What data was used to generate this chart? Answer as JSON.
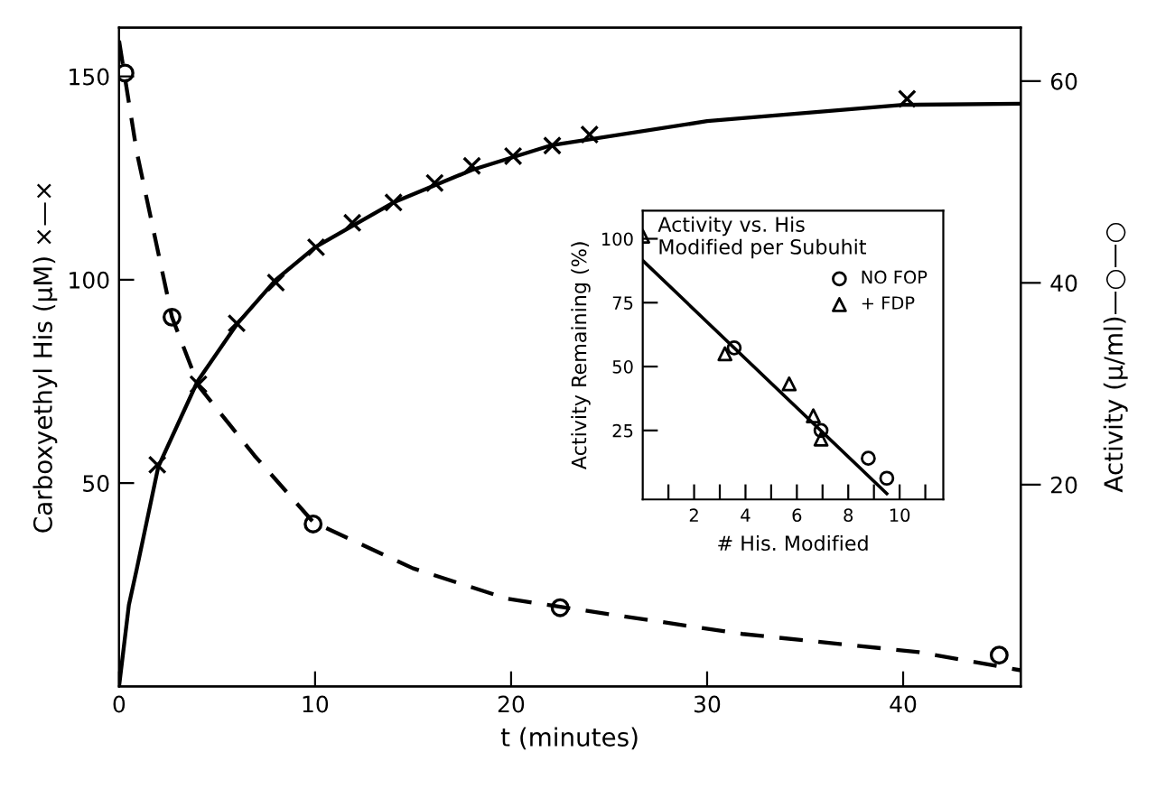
{
  "chart_data": [
    {
      "type": "scatter",
      "xlabel": "t (minutes)",
      "ylabel": "Carboxyethyl His (μM) ×—×",
      "y2label": "Activity (μ/ml)—○—○",
      "xlim": [
        0,
        46
      ],
      "xticks": [
        0,
        10,
        20,
        30,
        40
      ],
      "ylim": [
        0,
        162
      ],
      "yticks": [
        50,
        100,
        150
      ],
      "y2lim": [
        0,
        65.3
      ],
      "y2ticks": [
        20,
        40,
        60
      ],
      "grid": false,
      "legend": false,
      "series": [
        {
          "color": "#000000",
          "marker": "cross",
          "x": [
            1.95,
            4.05,
            6.0,
            8.0,
            10.05,
            11.9,
            14.0,
            16.1,
            18.0,
            20.1,
            22.1,
            24.0,
            40.2
          ],
          "values": [
            54.5,
            74.3,
            89.3,
            99.3,
            108,
            114,
            119,
            123.8,
            128,
            130.4,
            133,
            135.7,
            144.5
          ]
        },
        {
          "type": "line",
          "color": "#000000",
          "marker": "none",
          "line_style": "solid",
          "x": [
            0,
            0.5,
            0.9,
            2,
            4,
            6,
            8,
            10,
            14,
            18,
            22,
            30,
            40,
            46
          ],
          "values": [
            0,
            20,
            28.8,
            54,
            75,
            89,
            100,
            108,
            119,
            127,
            133,
            139,
            143,
            143.3
          ]
        },
        {
          "axis": "y2",
          "color": "#000000",
          "marker": "circle",
          "x": [
            0.3,
            2.7,
            9.9,
            22.5,
            44.9
          ],
          "values": [
            60.8,
            36.6,
            16.1,
            7.8,
            3.1
          ]
        },
        {
          "type": "line",
          "axis": "y2",
          "color": "#000000",
          "marker": "none",
          "line_style": "dashed",
          "x": [
            0,
            0.9,
            2.7,
            4.05,
            6.9,
            9.9,
            15,
            19.8,
            22.8,
            31.8,
            40.8,
            46
          ],
          "values": [
            64,
            53,
            36.6,
            29.8,
            22.9,
            16.3,
            11.7,
            8.7,
            7.8,
            5.2,
            3.4,
            1.6
          ]
        }
      ]
    },
    {
      "type": "scatter",
      "title": "Activity vs. His\nModified per Subuhit",
      "xlabel": "# His. Modified",
      "ylabel": "Activity Remaining (%)",
      "xlim": [
        0,
        11.7
      ],
      "xticks": [
        {
          "value": 1,
          "label": null
        },
        2,
        {
          "value": 3,
          "label": null
        },
        4,
        {
          "value": 5,
          "label": null
        },
        6,
        {
          "value": 7,
          "label": null
        },
        8,
        {
          "value": 9,
          "label": null
        },
        10,
        {
          "value": 11,
          "label": null
        }
      ],
      "ylim": [
        -2,
        111
      ],
      "yticks": [
        25,
        50,
        75,
        100
      ],
      "grid": false,
      "legend": "right",
      "series": [
        {
          "name": "NO FOP",
          "color": "#000000",
          "marker": "circle",
          "x": [
            3.56,
            6.94,
            8.78,
            9.5
          ],
          "values": [
            57.3,
            25,
            14.1,
            6.3
          ]
        },
        {
          "name": "+ FDP",
          "color": "#000000",
          "marker": "triangle",
          "x": [
            0,
            3.2,
            5.7,
            6.64,
            6.94
          ],
          "values": [
            101,
            55,
            43.2,
            30.7,
            21.6
          ]
        },
        {
          "type": "line",
          "color": "#000000",
          "marker": "none",
          "line_style": "solid",
          "x": [
            0,
            9.5
          ],
          "values": [
            91.5,
            0.3
          ]
        }
      ]
    }
  ]
}
